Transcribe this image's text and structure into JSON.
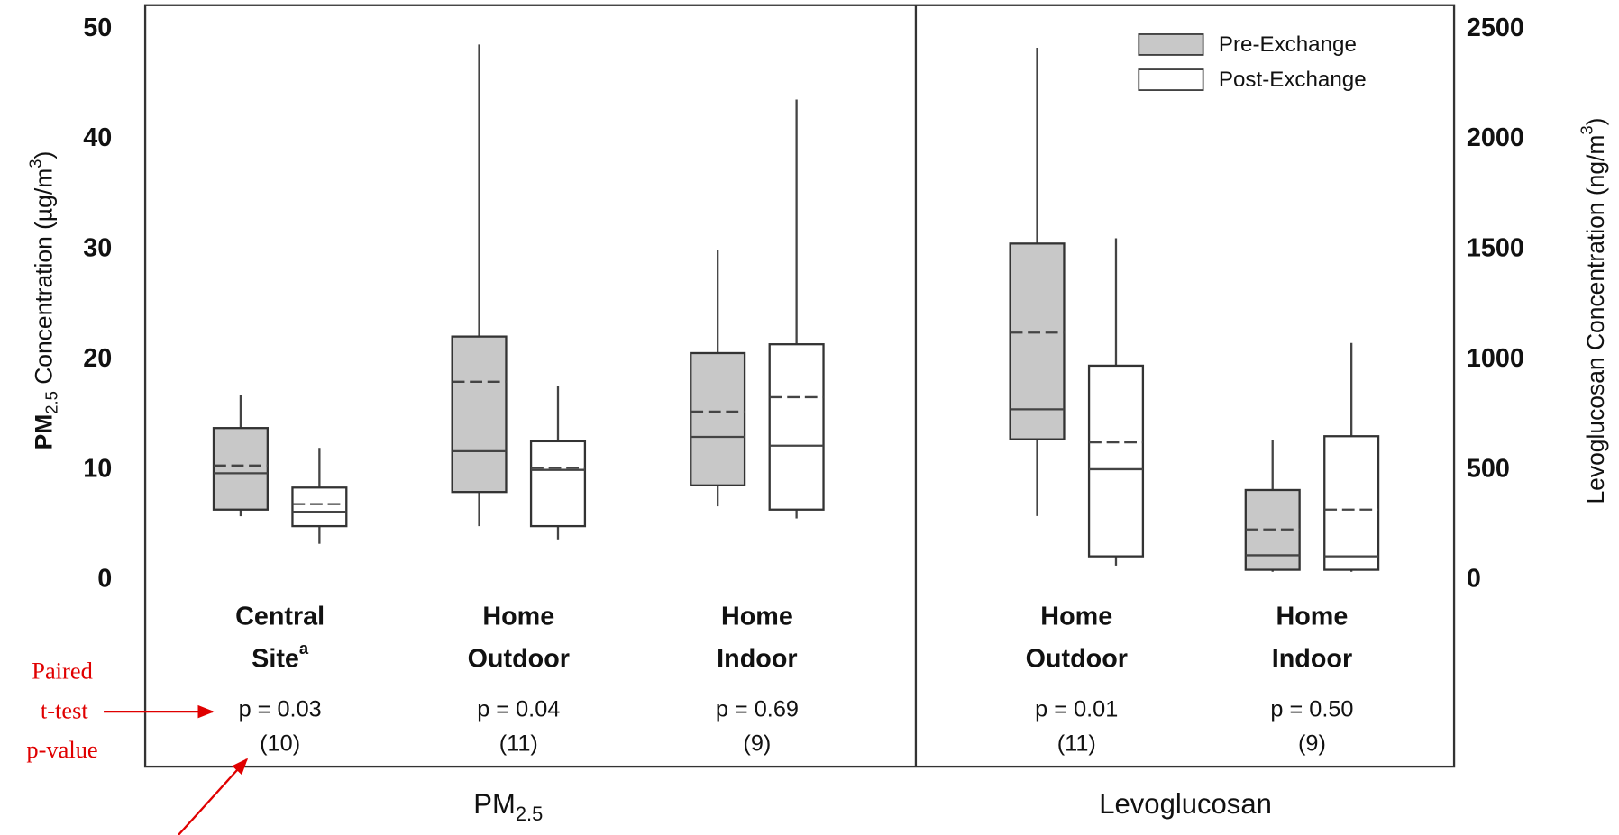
{
  "chart_data": {
    "type": "box",
    "series": [
      {
        "name": "Pre-Exchange",
        "color": "#c8c8c8"
      },
      {
        "name": "Post-Exchange",
        "color": "#ffffff"
      }
    ],
    "ylabel": {
      "text": "PM",
      "sub": "2.5",
      "rest": " Concentration (µg/m",
      "sup": "3",
      "end": ")"
    },
    "y2label": {
      "text": "Levoglucosan Concentration (ng/m",
      "sup": "3",
      "end": ")"
    },
    "ylim": [
      0,
      50
    ],
    "yticks": [
      0,
      10,
      20,
      30,
      40,
      50
    ],
    "y2lim": [
      0,
      2500
    ],
    "y2ticks": [
      0,
      500,
      1000,
      1500,
      2000,
      2500
    ],
    "panels": [
      {
        "title": "PM",
        "title_sub": "2.5",
        "axis": "y",
        "groups": [
          {
            "label": [
              "Central",
              "Site"
            ],
            "label_sup": "a",
            "p_value": "p = 0.03",
            "n": "(10)",
            "boxes": [
              {
                "min": 5.8,
                "q1": 6.4,
                "median": 9.7,
                "mean": 10.4,
                "q3": 13.8,
                "max": 16.8
              },
              {
                "min": 3.3,
                "q1": 4.9,
                "median": 6.2,
                "mean": 6.9,
                "q3": 8.4,
                "max": 12.0
              }
            ]
          },
          {
            "label": [
              "Home",
              "Outdoor"
            ],
            "p_value": "p = 0.04",
            "n": "(11)",
            "boxes": [
              {
                "min": 4.9,
                "q1": 8.0,
                "median": 11.7,
                "mean": 18.0,
                "q3": 22.1,
                "max": 48.6
              },
              {
                "min": 3.7,
                "q1": 4.9,
                "median": 10.0,
                "mean": 10.2,
                "q3": 12.6,
                "max": 17.6
              }
            ]
          },
          {
            "label": [
              "Home",
              "Indoor"
            ],
            "p_value": "p = 0.69",
            "n": "(9)",
            "boxes": [
              {
                "min": 6.7,
                "q1": 8.6,
                "median": 13.0,
                "mean": 15.3,
                "q3": 20.6,
                "max": 30.0
              },
              {
                "min": 5.6,
                "q1": 6.4,
                "median": 12.2,
                "mean": 16.6,
                "q3": 21.4,
                "max": 43.6
              }
            ]
          }
        ]
      },
      {
        "title": "Levoglucosan",
        "axis": "y2",
        "groups": [
          {
            "label": [
              "Home",
              "Outdoor"
            ],
            "p_value": "p = 0.01",
            "n": "(11)",
            "boxes": [
              {
                "min": 291,
                "q1": 639,
                "median": 775,
                "mean": 1123,
                "q3": 1527,
                "max": 2415
              },
              {
                "min": 66,
                "q1": 108,
                "median": 503,
                "mean": 625,
                "q3": 973,
                "max": 1551
              }
            ]
          },
          {
            "label": [
              "Home",
              "Indoor"
            ],
            "p_value": "p = 0.50",
            "n": "(9)",
            "boxes": [
              {
                "min": 38,
                "q1": 47,
                "median": 113,
                "mean": 230,
                "q3": 409,
                "max": 634
              },
              {
                "min": 38,
                "q1": 47,
                "median": 108,
                "mean": 320,
                "q3": 653,
                "max": 1076
              }
            ]
          }
        ]
      }
    ],
    "annotation": [
      "Paired",
      "t-test",
      "p-value"
    ]
  }
}
